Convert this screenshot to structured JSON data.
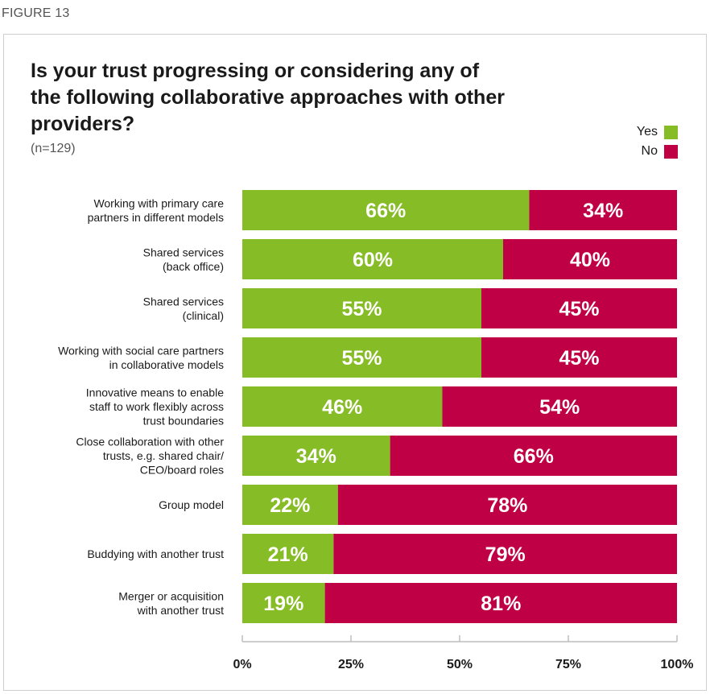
{
  "figure_label": "FIGURE 13",
  "title": "Is your trust progressing or considering any of the following collaborative approaches with other providers?",
  "subtitle": "(n=129)",
  "colors": {
    "yes": "#86bc25",
    "no": "#c00045",
    "axis": "#bdbdbd"
  },
  "legend": {
    "yes": "Yes",
    "no": "No"
  },
  "chart_data": {
    "type": "bar",
    "orientation": "horizontal",
    "stacked": true,
    "categories": [
      [
        "Working with primary care",
        "partners in different models"
      ],
      [
        "Shared services",
        "(back office)"
      ],
      [
        "Shared services",
        "(clinical)"
      ],
      [
        "Working with social care partners",
        "in collaborative models"
      ],
      [
        "Innovative means to enable",
        "staff to work flexibly across",
        "trust boundaries"
      ],
      [
        "Close collaboration with other",
        "trusts, e.g. shared chair/",
        "CEO/board roles"
      ],
      [
        "Group model"
      ],
      [
        "Buddying with another trust"
      ],
      [
        "Merger or acquisition",
        "with another trust"
      ]
    ],
    "series": [
      {
        "name": "Yes",
        "values": [
          66,
          60,
          55,
          55,
          46,
          34,
          22,
          21,
          19
        ]
      },
      {
        "name": "No",
        "values": [
          34,
          40,
          45,
          45,
          54,
          66,
          78,
          79,
          81
        ]
      }
    ],
    "xlim": [
      0,
      100
    ],
    "xticks": [
      "0%",
      "25%",
      "50%",
      "75%",
      "100%"
    ],
    "tick_values": [
      0,
      25,
      50,
      75,
      100
    ],
    "legend_position": "top-right",
    "grid": false
  }
}
